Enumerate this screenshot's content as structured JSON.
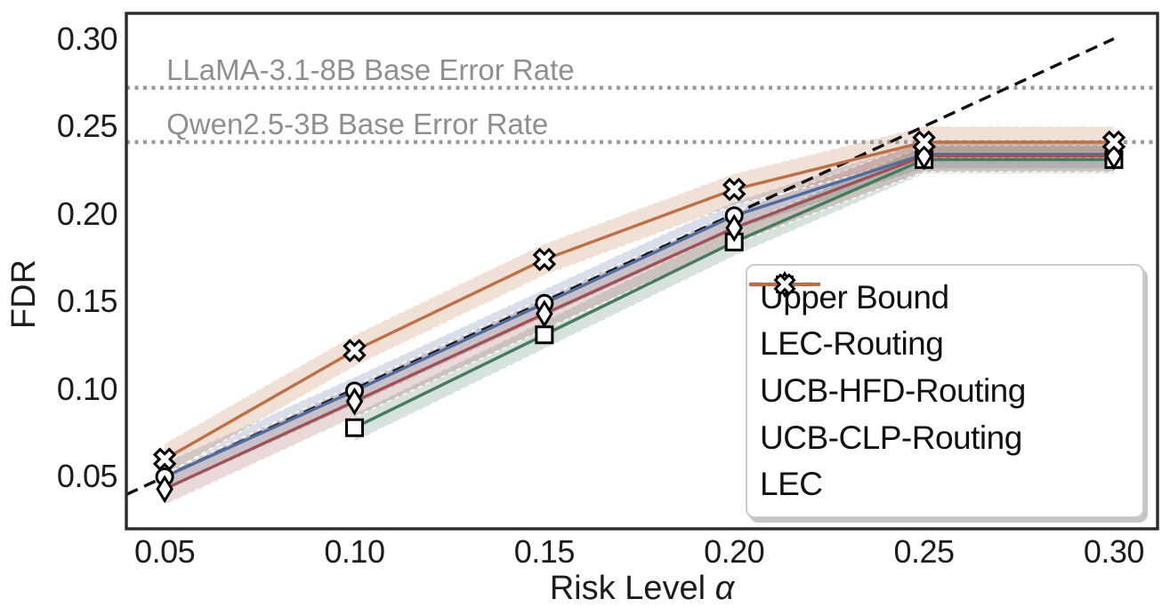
{
  "figure": {
    "ylabel": "FDR",
    "xlabel_prefix": "Risk Level",
    "xlabel_symbol": "α"
  },
  "chart_data": {
    "type": "line",
    "title": "",
    "xlabel": "Risk Level α",
    "ylabel": "FDR",
    "grid": false,
    "legend_position": "lower right",
    "xlim": [
      0.0399,
      0.3115
    ],
    "ylim": [
      0.0203,
      0.3145
    ],
    "x_ticks": [
      0.05,
      0.1,
      0.15,
      0.2,
      0.25,
      0.3
    ],
    "x_tick_labels": [
      "0.05",
      "0.10",
      "0.15",
      "0.20",
      "0.25",
      "0.30"
    ],
    "y_ticks": [
      0.05,
      0.1,
      0.15,
      0.2,
      0.25,
      0.3
    ],
    "y_tick_labels": [
      "0.05",
      "0.10",
      "0.15",
      "0.20",
      "0.25",
      "0.30"
    ],
    "x": [
      0.05,
      0.1,
      0.15,
      0.2,
      0.25,
      0.3
    ],
    "upper_bound": {
      "label": "Upper Bound",
      "style": "dashed",
      "color": "#111111",
      "x_start": 0.0399,
      "x_end": 0.3
    },
    "reference_lines": [
      {
        "label": "LLaMA-3.1-8B Base Error Rate",
        "value": 0.272,
        "color": "#9b9b9b",
        "style": "dotted"
      },
      {
        "label": "Qwen2.5-3B Base Error Rate",
        "value": 0.241,
        "color": "#9b9b9b",
        "style": "dotted"
      }
    ],
    "series": [
      {
        "name": "LEC-Routing",
        "color": "#4e6d9e",
        "marker": "circle",
        "band_halfwidth": 0.008,
        "values": [
          0.05,
          0.099,
          0.149,
          0.199,
          0.234,
          0.234
        ]
      },
      {
        "name": "UCB-HFD-Routing",
        "color": "#467a5c",
        "marker": "square",
        "band_halfwidth": 0.008,
        "values": [
          null,
          0.078,
          0.131,
          0.184,
          0.231,
          0.231
        ]
      },
      {
        "name": "UCB-CLP-Routing",
        "color": "#a05252",
        "marker": "diamond",
        "band_halfwidth": 0.009,
        "values": [
          0.043,
          0.093,
          0.143,
          0.192,
          0.233,
          0.233
        ]
      },
      {
        "name": "LEC",
        "color": "#bd7044",
        "marker": "x",
        "band_halfwidth": 0.009,
        "values": [
          0.06,
          0.122,
          0.174,
          0.214,
          0.241,
          0.241
        ]
      }
    ]
  }
}
